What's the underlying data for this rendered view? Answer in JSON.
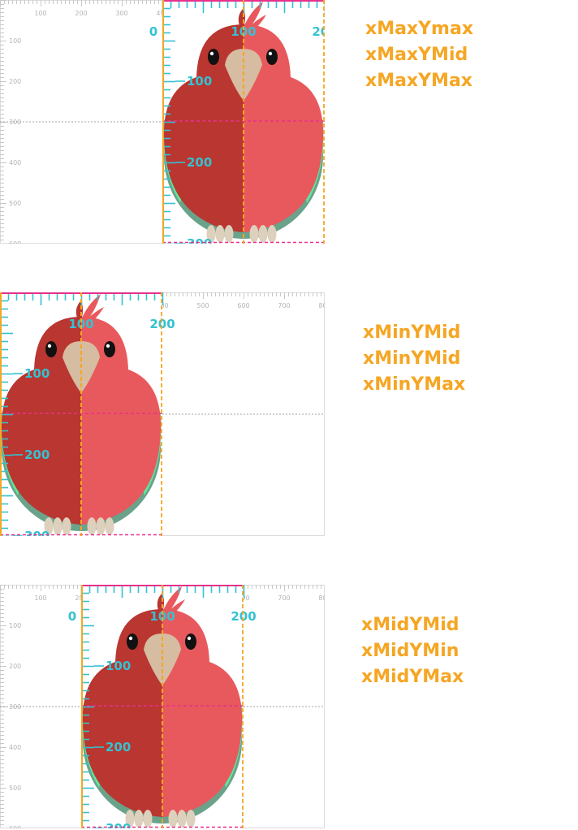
{
  "colors": {
    "outer_ruler_tick": "#c8c8c8",
    "outer_ruler_text": "#b4b4b4",
    "inner_ruler": "#35c1d1",
    "viewbox_border": "#f5a623",
    "midline": "#e8308c",
    "label": "#f5a623",
    "bird_dark": "#b93631",
    "bird_light": "#e8595d",
    "beak": "#d6bca0",
    "wing_green": "#5fe79c",
    "wing_teal": "#6aa28a",
    "eye": "#111111",
    "feet": "#ddd0bd"
  },
  "outer_ruler": {
    "x_ticks": [
      "100",
      "200",
      "300",
      "400",
      "500",
      "600",
      "700",
      "800"
    ],
    "y_ticks": [
      "100",
      "200",
      "300",
      "400",
      "500",
      "600"
    ]
  },
  "inner_ruler": {
    "x_ticks": [
      "0",
      "100",
      "200"
    ],
    "y_ticks": [
      "100",
      "200",
      "300"
    ]
  },
  "panels": [
    {
      "id": "panel-1",
      "align": "xMax",
      "labels": [
        "xMaxYmax",
        "xMaxYMid",
        "xMaxYMax"
      ]
    },
    {
      "id": "panel-2",
      "align": "xMin",
      "labels": [
        "xMinYMid",
        "xMinYMid",
        "xMinYMax"
      ]
    },
    {
      "id": "panel-3",
      "align": "xMid",
      "labels": [
        "xMidYMid",
        "xMidYMin",
        "xMidYMax"
      ]
    }
  ]
}
